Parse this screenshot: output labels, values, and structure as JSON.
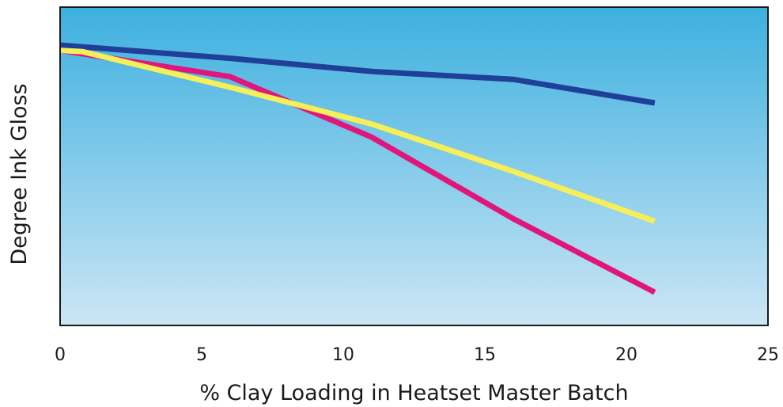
{
  "chart_data": {
    "type": "line",
    "title": "",
    "xlabel": "% Clay Loading in Heatset Master Batch",
    "ylabel": "Degree Ink Gloss",
    "xlim": [
      0,
      25
    ],
    "x_ticks": [
      "0",
      "5",
      "10",
      "15",
      "20",
      "25"
    ],
    "y_ticks": [],
    "grid": false,
    "legend": "none",
    "series": [
      {
        "color": "#1f3f99",
        "x": [
          0,
          6,
          11,
          16,
          21
        ],
        "y": [
          100,
          95,
          90,
          87,
          78
        ]
      },
      {
        "color": "#e0167a",
        "x": [
          0,
          6,
          11,
          16,
          21
        ],
        "y": [
          98,
          88,
          65,
          34,
          6
        ]
      },
      {
        "color": "#f5ef5a",
        "x": [
          0,
          0.8,
          6,
          11,
          16,
          21
        ],
        "y": [
          98,
          97.5,
          84,
          70,
          52,
          33
        ]
      }
    ],
    "background_gradient": [
      "#3db0df",
      "#cce6f5"
    ],
    "frame_color": "#1a1a1a"
  }
}
